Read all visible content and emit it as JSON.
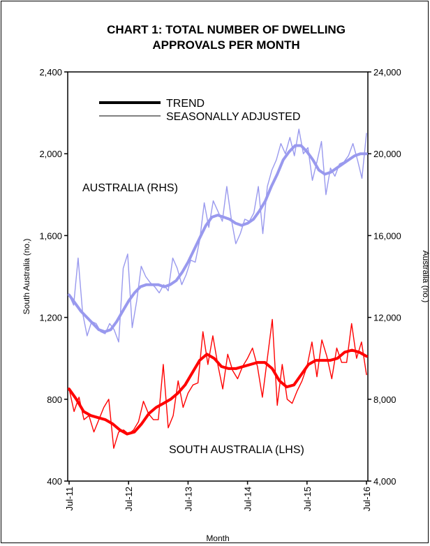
{
  "chart_data": {
    "type": "line",
    "title_line1": "CHART 1: TOTAL NUMBER OF DWELLING",
    "title_line2": "APPROVALS PER MONTH",
    "xlabel": "Month",
    "ylabel_left": "South Australia (no.)",
    "ylabel_right": "Australia (no.)",
    "ylim_left": [
      400,
      2400
    ],
    "ylim_right": [
      4000,
      24000
    ],
    "yticks_left": [
      "400",
      "800",
      "1,200",
      "1,600",
      "2,000",
      "2,400"
    ],
    "yticks_right": [
      "4,000",
      "8,000",
      "12,000",
      "16,000",
      "20,000",
      "24,000"
    ],
    "x_tick_labels": [
      "Jul-11",
      "Jul-12",
      "Jul-13",
      "Jul-14",
      "Jul-15",
      "Jul-16"
    ],
    "grid": false,
    "legend_position": "top-left",
    "legend": {
      "trend_label": "TREND",
      "sa_label": "SEASONALLY ADJUSTED"
    },
    "annotations": {
      "australia": "AUSTRALIA (RHS)",
      "south_australia": "SOUTH AUSTRALIA (LHS)"
    },
    "colors": {
      "australia": "#9999ee",
      "south_australia": "#ff0000",
      "legend": "#000000"
    },
    "x_start": "2011-07",
    "x_end": "2016-07",
    "series": [
      {
        "name": "AUSTRALIA (RHS)",
        "kind": "seasonally_adjusted",
        "axis": "right",
        "values": [
          13100,
          12600,
          14900,
          12200,
          11100,
          11800,
          11700,
          11300,
          11200,
          11700,
          11400,
          10800,
          14400,
          15100,
          11500,
          12800,
          14500,
          14000,
          13700,
          13500,
          13200,
          13600,
          13300,
          14900,
          14400,
          13600,
          14100,
          14800,
          14700,
          15800,
          17600,
          16400,
          17700,
          17200,
          16700,
          18400,
          16800,
          15600,
          16100,
          16800,
          16700,
          17100,
          18400,
          16100,
          18400,
          19200,
          19700,
          20500,
          20000,
          20800,
          19900,
          21200,
          20000,
          20300,
          18700,
          19600,
          20600,
          18000,
          19300,
          18900,
          19500,
          19600,
          19900,
          20500,
          19700,
          18800,
          21000
        ]
      },
      {
        "name": "AUSTRALIA (RHS)",
        "kind": "trend",
        "axis": "right",
        "values": [
          13100,
          12700,
          12300,
          12000,
          11700,
          11400,
          11300,
          11400,
          11800,
          12300,
          12800,
          13200,
          13500,
          13600,
          13600,
          13600,
          13500,
          13600,
          13800,
          14200,
          14700,
          15300,
          15900,
          16500,
          16900,
          17000,
          16900,
          16800,
          16600,
          16500,
          16600,
          16800,
          17200,
          17700,
          18400,
          19000,
          19700,
          20100,
          20400,
          20400,
          20100,
          19700,
          19200,
          19000,
          19100,
          19300,
          19500,
          19700,
          19900,
          20000,
          20000
        ]
      },
      {
        "name": "SOUTH AUSTRALIA (LHS)",
        "kind": "seasonally_adjusted",
        "axis": "left",
        "values": [
          850,
          740,
          810,
          700,
          720,
          640,
          700,
          760,
          800,
          560,
          640,
          650,
          630,
          650,
          690,
          790,
          730,
          700,
          700,
          970,
          660,
          720,
          890,
          760,
          830,
          870,
          880,
          1130,
          970,
          1110,
          970,
          850,
          1020,
          940,
          900,
          960,
          1000,
          1050,
          960,
          810,
          1000,
          1190,
          770,
          970,
          800,
          780,
          840,
          890,
          960,
          1080,
          910,
          1090,
          1010,
          900,
          1050,
          980,
          980,
          1170,
          1000,
          1080,
          920
        ]
      },
      {
        "name": "SOUTH AUSTRALIA (LHS)",
        "kind": "trend",
        "axis": "left",
        "values": [
          850,
          800,
          740,
          720,
          710,
          700,
          680,
          650,
          630,
          640,
          680,
          730,
          760,
          780,
          800,
          830,
          870,
          930,
          990,
          1020,
          1000,
          960,
          950,
          950,
          960,
          970,
          980,
          980,
          950,
          890,
          860,
          870,
          920,
          970,
          990,
          990,
          990,
          1000,
          1030,
          1040,
          1030,
          1010
        ]
      }
    ]
  }
}
